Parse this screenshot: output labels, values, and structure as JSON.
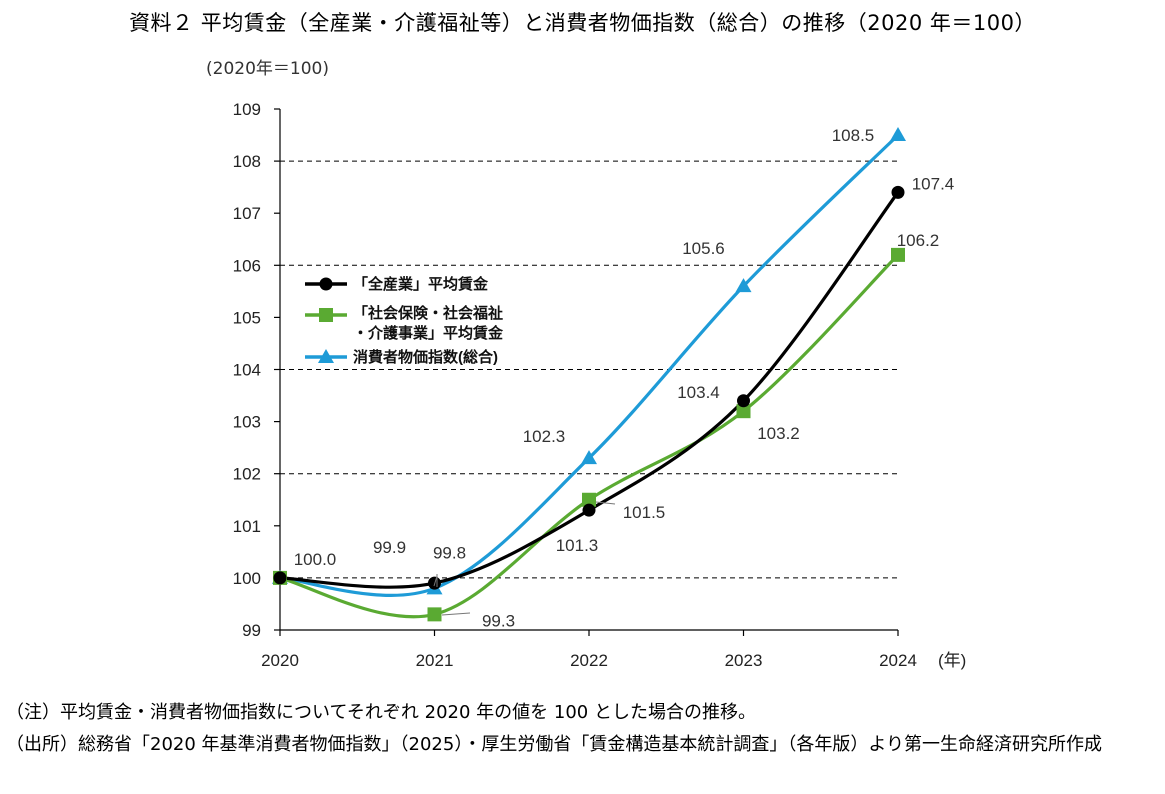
{
  "page": {
    "title": "資料２ 平均賃金（全産業・介護福祉等）と消費者物価指数（総合）の推移（2020 年＝100）",
    "unit_label": "(2020年＝100)",
    "note": "（注）平均賃金・消費者物価指数についてそれぞれ 2020 年の値を 100 とした場合の推移。",
    "source": "（出所）総務省「2020 年基準消費者物価指数」（2025）・厚生労働省「賃金構造基本統計調査」（各年版）より第一生命経済研究所作成"
  },
  "chart_data": {
    "type": "line",
    "title": "平均賃金（全産業・介護福祉等）と消費者物価指数（総合）の推移（2020 年＝100）",
    "xlabel": "(年)",
    "ylabel": "(2020年＝100)",
    "x": [
      2020,
      2021,
      2022,
      2023,
      2024
    ],
    "x_tick_labels": [
      "2020",
      "2021",
      "2022",
      "2023",
      "2024"
    ],
    "ylim": [
      99,
      109
    ],
    "y_ticks": [
      99,
      100,
      101,
      102,
      103,
      104,
      105,
      106,
      107,
      108,
      109
    ],
    "grid": "horizontal dashed at 100, 102, 104, 106, 108",
    "legend_position": "upper-left inside plot",
    "series": [
      {
        "name": "「全産業」平均賃金",
        "legend_label": "「全産業」平均賃金",
        "color": "#000000",
        "marker": "circle",
        "values": [
          100.0,
          99.9,
          101.3,
          103.4,
          107.4
        ],
        "data_labels": [
          "100.0",
          "99.9",
          "101.3",
          "103.4",
          "107.4"
        ]
      },
      {
        "name": "「社会保険・社会福祉・介護事業」平均賃金",
        "legend_label_line1": "「社会保険・社会福祉",
        "legend_label_line2": "・介護事業」平均賃金",
        "color": "#5aaa32",
        "marker": "square",
        "values": [
          100.0,
          99.3,
          101.5,
          103.2,
          106.2
        ],
        "data_labels": [
          "",
          "99.3",
          "101.5",
          "103.2",
          "106.2"
        ]
      },
      {
        "name": "消費者物価指数(総合)",
        "legend_label": "消費者物価指数(総合)",
        "color": "#1e9bd7",
        "marker": "triangle",
        "values": [
          100.0,
          99.8,
          102.3,
          105.6,
          108.5
        ],
        "data_labels": [
          "",
          "99.8",
          "102.3",
          "105.6",
          "108.5"
        ]
      }
    ]
  }
}
